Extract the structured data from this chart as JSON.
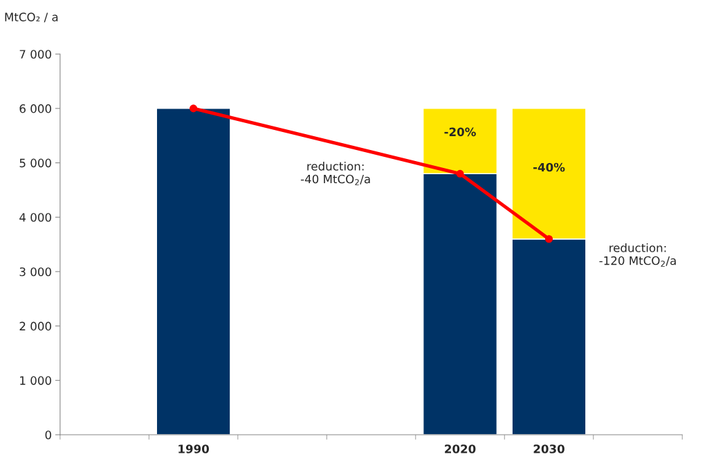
{
  "chart_data": {
    "type": "bar",
    "ylabel": "MtCO₂ / a",
    "categories": [
      null,
      "1990",
      null,
      null,
      "2020",
      "2030",
      null
    ],
    "stacked": true,
    "series": [
      {
        "color": "#003366",
        "values": [
          null,
          6000,
          null,
          null,
          4800,
          3600,
          null
        ]
      },
      {
        "color": "#ffe600",
        "values": [
          null,
          null,
          null,
          null,
          1200,
          2400,
          null
        ]
      },
      {
        "type": "line",
        "color": "#ff0000",
        "marker": "circle",
        "values": [
          null,
          6000,
          null,
          null,
          4800,
          3600,
          null
        ]
      }
    ],
    "ylim": [
      0,
      7000
    ],
    "yticks": [
      0,
      {
        "value": 1000,
        "label": "1 000"
      },
      {
        "value": 2000,
        "label": "2 000"
      },
      {
        "value": 3000,
        "label": "3 000"
      },
      {
        "value": 4000,
        "label": "4 000"
      },
      {
        "value": 5000,
        "label": "5 000"
      },
      {
        "value": 6000,
        "label": "6 000"
      },
      {
        "value": 7000,
        "label": "7 000"
      }
    ],
    "annotations": [
      "reduction:\n-40 MtCO$_{2}$/a",
      "reduction:\n-120 MtCO$_{2}$/a",
      "-20%",
      "-40%"
    ],
    "grid": false,
    "legend": false
  }
}
